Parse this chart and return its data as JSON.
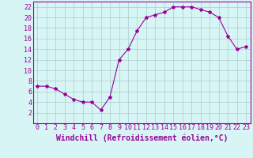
{
  "x": [
    0,
    1,
    2,
    3,
    4,
    5,
    6,
    7,
    8,
    9,
    10,
    11,
    12,
    13,
    14,
    15,
    16,
    17,
    18,
    19,
    20,
    21,
    22,
    23
  ],
  "y": [
    7,
    7,
    6.5,
    5.5,
    4.5,
    4,
    4,
    2.5,
    5,
    12,
    14,
    17.5,
    20,
    20.5,
    21,
    22,
    22,
    22,
    21.5,
    21,
    20,
    16.5,
    14,
    14.5
  ],
  "line_color": "#990099",
  "marker": "*",
  "marker_size": 3,
  "bg_color": "#d8f5f5",
  "grid_color": "#aacccc",
  "axis_color": "#990099",
  "xlabel": "Windchill (Refroidissement éolien,°C)",
  "xlabel_fontsize": 7,
  "ylim": [
    0,
    23
  ],
  "xlim": [
    -0.5,
    23.5
  ],
  "yticks": [
    2,
    4,
    6,
    8,
    10,
    12,
    14,
    16,
    18,
    20,
    22
  ],
  "xticks": [
    0,
    1,
    2,
    3,
    4,
    5,
    6,
    7,
    8,
    9,
    10,
    11,
    12,
    13,
    14,
    15,
    16,
    17,
    18,
    19,
    20,
    21,
    22,
    23
  ],
  "tick_fontsize": 6
}
